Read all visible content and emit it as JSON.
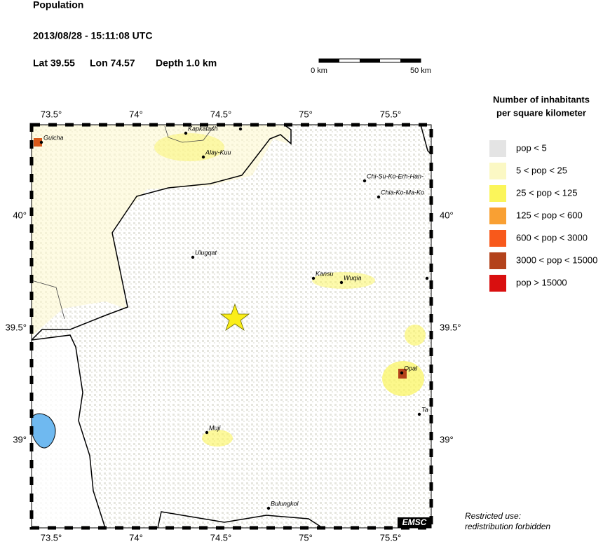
{
  "header": {
    "title": "Population",
    "datetime": "2013/08/28 - 15:11:08 UTC",
    "lat": "Lat 39.55",
    "lon": "Lon 74.57",
    "depth": "Depth  1.0 km"
  },
  "scale_bar": {
    "left": "0 km",
    "right": "50 km"
  },
  "legend": {
    "title_lines": [
      "Number of inhabitants",
      "per square kilometer"
    ],
    "items": [
      {
        "label": "pop < 5",
        "color": "#e4e4e4"
      },
      {
        "label": "5 < pop < 25",
        "color": "#fbf8c4"
      },
      {
        "label": "25 < pop < 125",
        "color": "#fbf55a"
      },
      {
        "label": "125 < pop < 600",
        "color": "#f9a033"
      },
      {
        "label": "600 < pop < 3000",
        "color": "#f8591b"
      },
      {
        "label": "3000 < pop < 15000",
        "color": "#b3421b"
      },
      {
        "label": "pop > 15000",
        "color": "#d90f0f"
      }
    ]
  },
  "map": {
    "lon_ticks": [
      "73.5°",
      "74°",
      "74.5°",
      "75°",
      "75.5°"
    ],
    "lat_ticks": [
      "40°",
      "39.5°",
      "39°"
    ],
    "places": [
      "Gulcha",
      "Kapkatash",
      "Alay-Kuu",
      "Chi-Su-Ko-Erh-Han-",
      "Chia-Ko-Ma-Ko",
      "Ulugqat",
      "Kansu",
      "Wuqia",
      "Opal",
      "Ta",
      "Muji",
      "Bulungkol"
    ],
    "badge": "EMSC"
  },
  "footer": [
    "Restricted use:",
    "redistribution forbidden"
  ]
}
